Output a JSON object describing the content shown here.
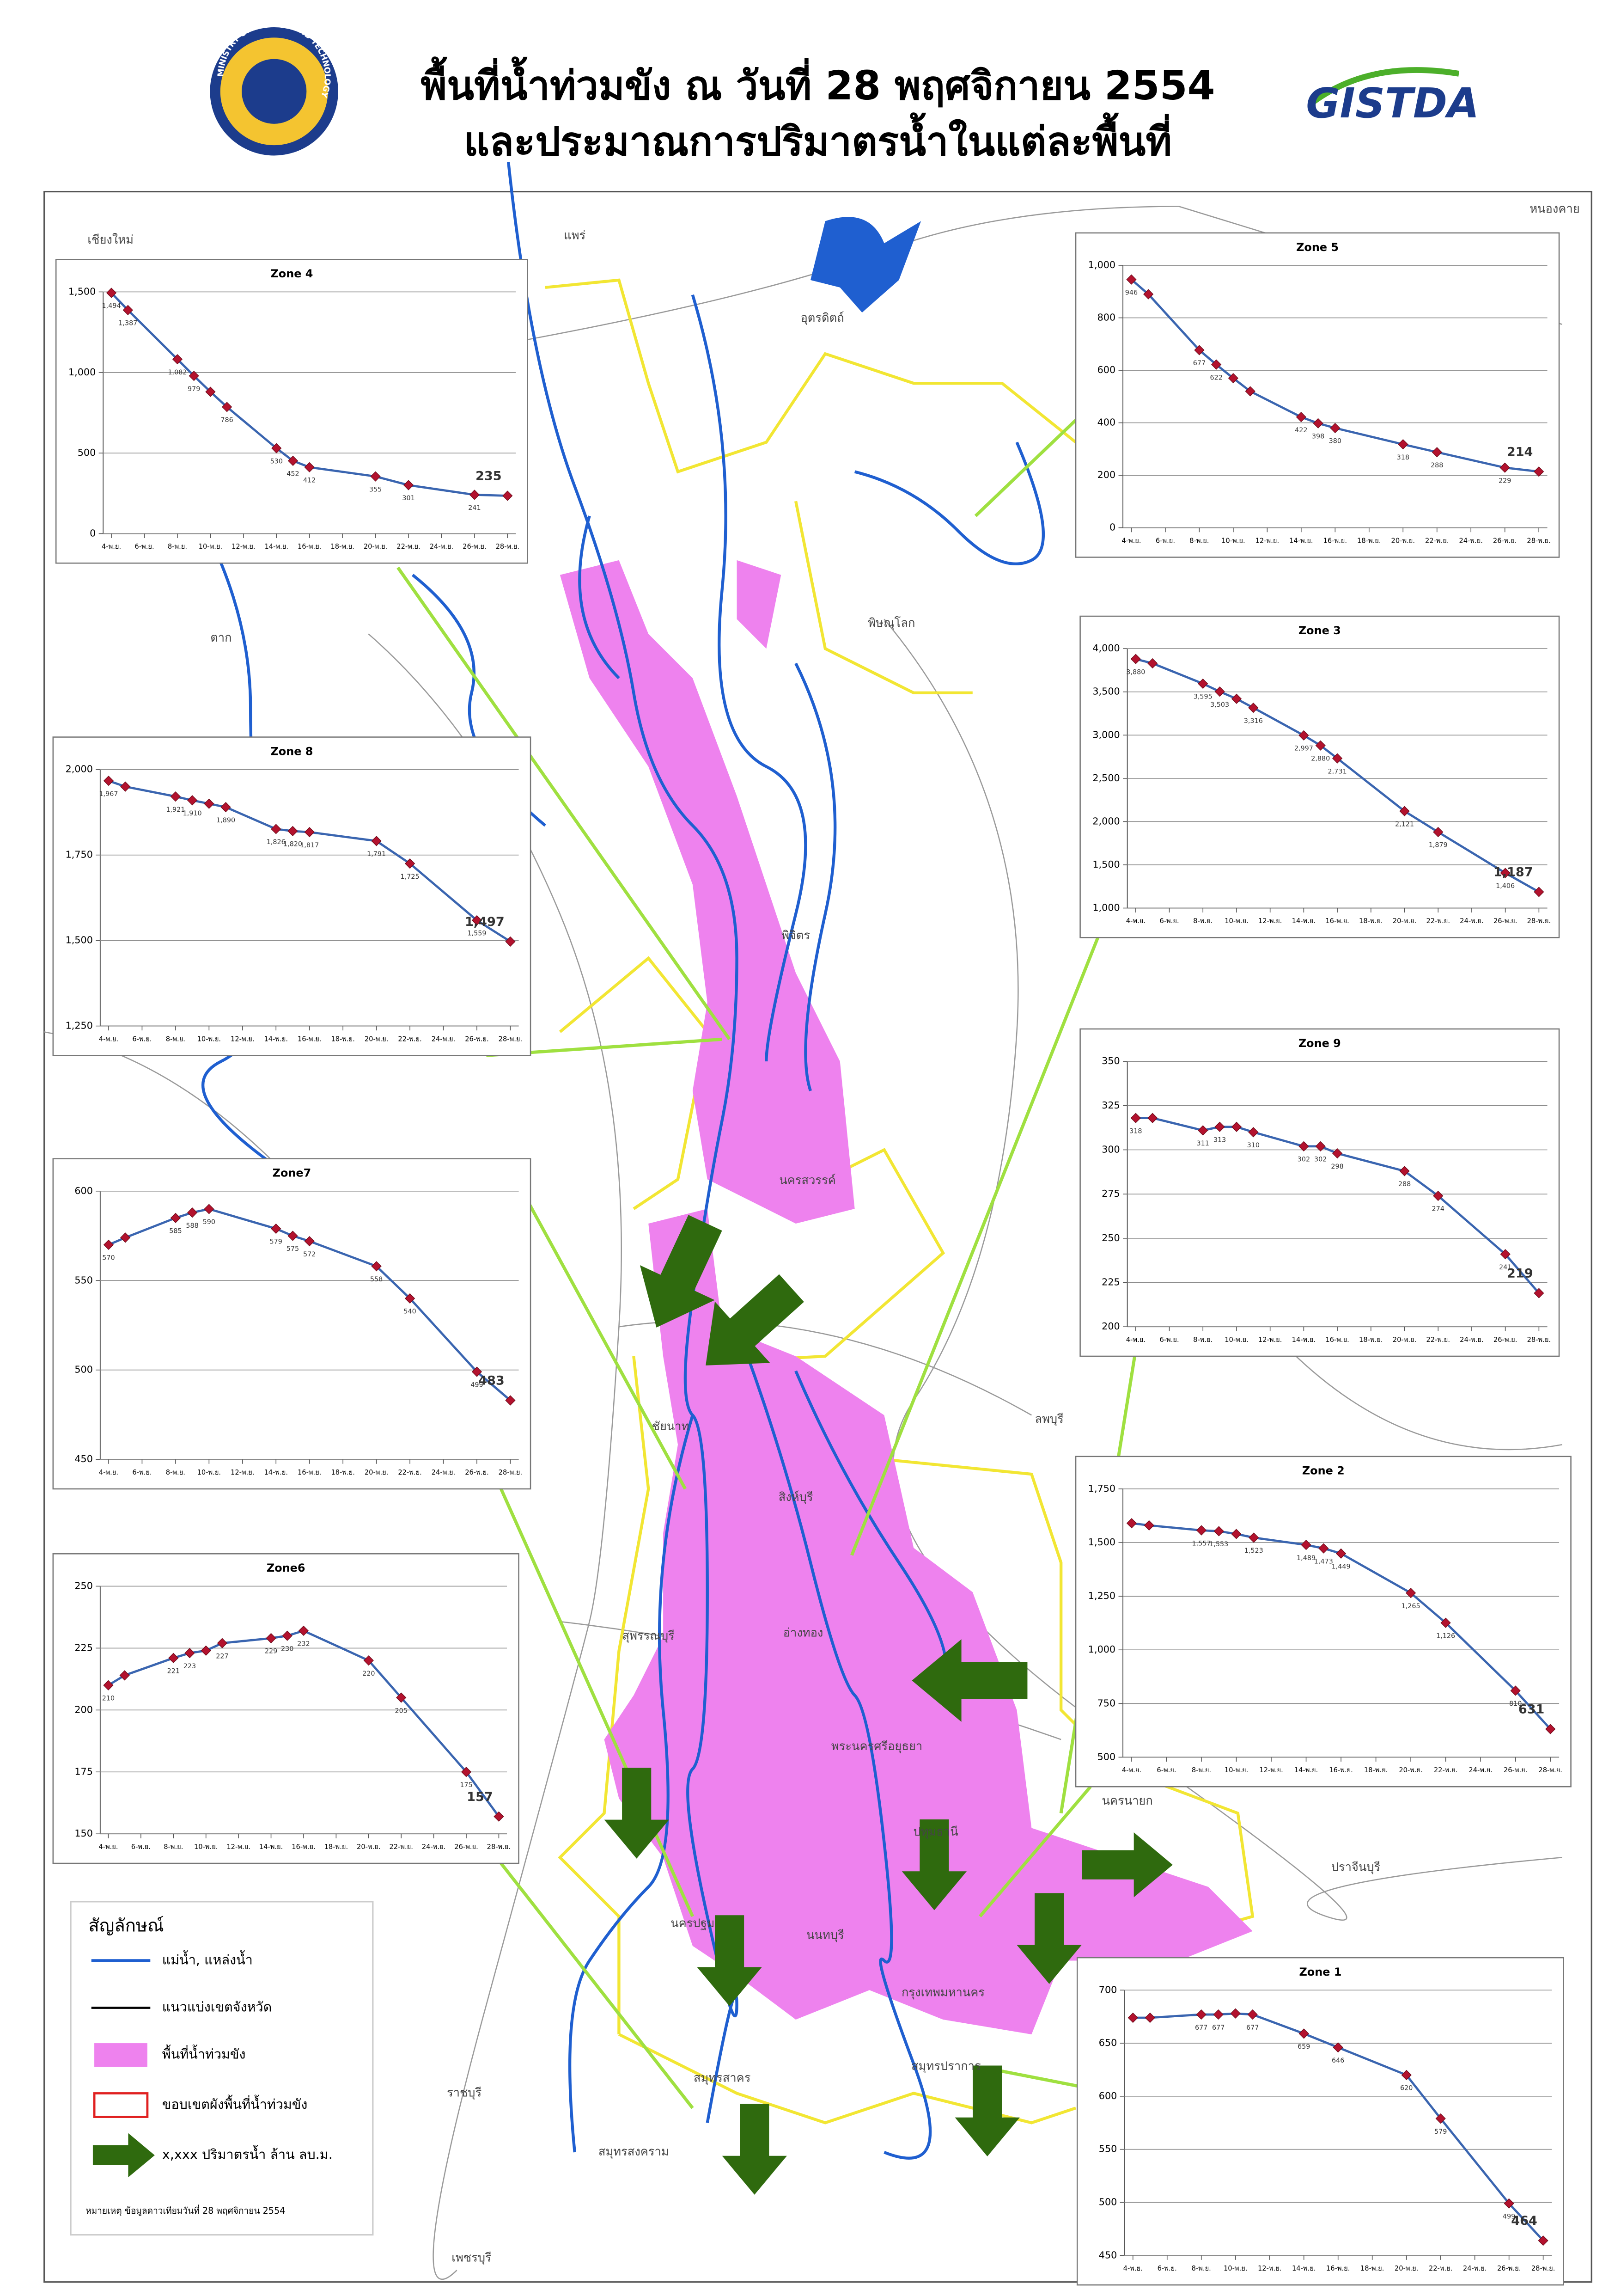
{
  "header": {
    "title": [
      "พื้นที่น้ำท่วมขัง ณ วันที่ 28 พฤศจิกายน 2554",
      "และประมาณการปริมาตรน้ำในแต่ละพื้นที่"
    ],
    "logo_left": "MINISTRY OF SCIENCE AND TECHNOLOGY",
    "logo_right": "GISTDA"
  },
  "legend": {
    "title": "สัญลักษณ์",
    "items": [
      "แม่น้ำ, แหล่งน้ำ",
      "แนวแบ่งเขตจังหวัด",
      "พื้นที่น้ำท่วมขัง",
      "ขอบเขตผังพื้นที่น้ำท่วมขัง",
      "x,xxx ปริมาตรน้ำ ล้าน ลบ.ม."
    ]
  },
  "note": "หมายเหตุ ข้อมูลดาวเทียมวันที่ 28 พฤศจิกายน 2554",
  "place_labels": [
    "เชียงใหม่",
    "แพร่",
    "หนองคาย",
    "อุตรดิตถ์",
    "พิษณุโลก",
    "ตาก",
    "พิจิตร",
    "นครสวรรค์",
    "ชัยนาท",
    "ลพบุรี",
    "สิงห์บุรี",
    "สุพรรณบุรี",
    "อ่างทอง",
    "พระนครศรีอยุธยา",
    "นครนายก",
    "ปทุมธานี",
    "ปราจีนบุรี",
    "นครปฐม",
    "นนทบุรี",
    "กรุงเทพมหานคร",
    "สมุทรสาคร",
    "สมุทรปราการ",
    "ราชบุรี",
    "สมุทรสงคราม",
    "เพชรบุรี"
  ],
  "chart_data": [
    {
      "type": "line",
      "title": "Zone 4",
      "x": [
        4,
        5,
        8,
        9,
        10,
        11,
        14,
        15,
        16,
        20,
        22,
        26,
        28
      ],
      "values": [
        1494,
        1387,
        1082,
        979,
        880,
        786,
        530,
        452,
        412,
        355,
        301,
        241,
        235
      ],
      "value_labels": [
        "1,494",
        "1,387",
        "1,082",
        "979",
        null,
        "786",
        "530",
        "452",
        "412",
        "355",
        "301",
        "241",
        "235"
      ],
      "xlim": [
        3.5,
        28.5
      ],
      "xticks": [
        {
          "value": 4,
          "label": "4-พ.ย."
        },
        {
          "value": 6,
          "label": "6-พ.ย."
        },
        {
          "value": 8,
          "label": "8-พ.ย."
        },
        {
          "value": 10,
          "label": "10-พ.ย."
        },
        {
          "value": 12,
          "label": "12-พ.ย."
        },
        {
          "value": 14,
          "label": "14-พ.ย."
        },
        {
          "value": 16,
          "label": "16-พ.ย."
        },
        {
          "value": 18,
          "label": "18-พ.ย."
        },
        {
          "value": 20,
          "label": "20-พ.ย."
        },
        {
          "value": 22,
          "label": "22-พ.ย."
        },
        {
          "value": 24,
          "label": "24-พ.ย."
        },
        {
          "value": 26,
          "label": "26-พ.ย."
        },
        {
          "value": 28,
          "label": "28-พ.ย."
        }
      ],
      "ylim": [
        0,
        1500
      ],
      "yticks": [
        0,
        500,
        {
          "value": 1000,
          "label": "1,000"
        },
        {
          "value": 1500,
          "label": "1,500"
        }
      ],
      "color": "#3a65b0",
      "marker_color": "#b3122e",
      "grid": true
    },
    {
      "type": "line",
      "title": "Zone 5",
      "x": [
        4,
        5,
        8,
        9,
        10,
        11,
        14,
        15,
        16,
        20,
        22,
        26,
        28
      ],
      "values": [
        946,
        890,
        677,
        622,
        570,
        520,
        422,
        398,
        380,
        318,
        288,
        229,
        214
      ],
      "value_labels": [
        "946",
        null,
        "677",
        "622",
        null,
        null,
        "422",
        "398",
        "380",
        "318",
        "288",
        "229",
        "214"
      ],
      "xlim": [
        3.5,
        28.5
      ],
      "xticks": [
        {
          "value": 4,
          "label": "4-พ.ย."
        },
        {
          "value": 6,
          "label": "6-พ.ย."
        },
        {
          "value": 8,
          "label": "8-พ.ย."
        },
        {
          "value": 10,
          "label": "10-พ.ย."
        },
        {
          "value": 12,
          "label": "12-พ.ย."
        },
        {
          "value": 14,
          "label": "14-พ.ย."
        },
        {
          "value": 16,
          "label": "16-พ.ย."
        },
        {
          "value": 18,
          "label": "18-พ.ย."
        },
        {
          "value": 20,
          "label": "20-พ.ย."
        },
        {
          "value": 22,
          "label": "22-พ.ย."
        },
        {
          "value": 24,
          "label": "24-พ.ย."
        },
        {
          "value": 26,
          "label": "26-พ.ย."
        },
        {
          "value": 28,
          "label": "28-พ.ย."
        }
      ],
      "ylim": [
        0,
        1000
      ],
      "yticks": [
        0,
        200,
        400,
        600,
        800,
        {
          "value": 1000,
          "label": "1,000"
        }
      ],
      "color": "#3a65b0",
      "marker_color": "#b3122e",
      "grid": true
    },
    {
      "type": "line",
      "title": "Zone 3",
      "x": [
        4,
        5,
        8,
        9,
        10,
        11,
        14,
        15,
        16,
        20,
        22,
        26,
        28
      ],
      "values": [
        3880,
        3830,
        3595,
        3503,
        3420,
        3316,
        2997,
        2880,
        2731,
        2121,
        1879,
        1406,
        1187
      ],
      "value_labels": [
        "3,880",
        null,
        "3,595",
        "3,503",
        null,
        "3,316",
        "2,997",
        "2,880",
        "2,731",
        "2,121",
        "1,879",
        "1,406",
        "1,187"
      ],
      "xlim": [
        3.5,
        28.5
      ],
      "xticks": [
        {
          "value": 4,
          "label": "4-พ.ย."
        },
        {
          "value": 6,
          "label": "6-พ.ย."
        },
        {
          "value": 8,
          "label": "8-พ.ย."
        },
        {
          "value": 10,
          "label": "10-พ.ย."
        },
        {
          "value": 12,
          "label": "12-พ.ย."
        },
        {
          "value": 14,
          "label": "14-พ.ย."
        },
        {
          "value": 16,
          "label": "16-พ.ย."
        },
        {
          "value": 18,
          "label": "18-พ.ย."
        },
        {
          "value": 20,
          "label": "20-พ.ย."
        },
        {
          "value": 22,
          "label": "22-พ.ย."
        },
        {
          "value": 24,
          "label": "24-พ.ย."
        },
        {
          "value": 26,
          "label": "26-พ.ย."
        },
        {
          "value": 28,
          "label": "28-พ.ย."
        }
      ],
      "ylim": [
        1000,
        4000
      ],
      "yticks": [
        {
          "value": 1000,
          "label": "1,000"
        },
        {
          "value": 1500,
          "label": "1,500"
        },
        {
          "value": 2000,
          "label": "2,000"
        },
        {
          "value": 2500,
          "label": "2,500"
        },
        {
          "value": 3000,
          "label": "3,000"
        },
        {
          "value": 3500,
          "label": "3,500"
        },
        {
          "value": 4000,
          "label": "4,000"
        }
      ],
      "color": "#3a65b0",
      "marker_color": "#b3122e",
      "grid": true
    },
    {
      "type": "line",
      "title": "Zone 8",
      "x": [
        4,
        5,
        8,
        9,
        10,
        11,
        14,
        15,
        16,
        20,
        22,
        26,
        28
      ],
      "values": [
        1967,
        1950,
        1921,
        1910,
        1900,
        1890,
        1826,
        1820,
        1817,
        1791,
        1725,
        1559,
        1497
      ],
      "value_labels": [
        "1,967",
        null,
        "1,921",
        "1,910",
        null,
        "1,890",
        "1,826",
        "1,820",
        "1,817",
        "1,791",
        "1,725",
        "1,559",
        "1,497"
      ],
      "xlim": [
        3.5,
        28.5
      ],
      "xticks": [
        {
          "value": 4,
          "label": "4-พ.ย."
        },
        {
          "value": 6,
          "label": "6-พ.ย."
        },
        {
          "value": 8,
          "label": "8-พ.ย."
        },
        {
          "value": 10,
          "label": "10-พ.ย."
        },
        {
          "value": 12,
          "label": "12-พ.ย."
        },
        {
          "value": 14,
          "label": "14-พ.ย."
        },
        {
          "value": 16,
          "label": "16-พ.ย."
        },
        {
          "value": 18,
          "label": "18-พ.ย."
        },
        {
          "value": 20,
          "label": "20-พ.ย."
        },
        {
          "value": 22,
          "label": "22-พ.ย."
        },
        {
          "value": 24,
          "label": "24-พ.ย."
        },
        {
          "value": 26,
          "label": "26-พ.ย."
        },
        {
          "value": 28,
          "label": "28-พ.ย."
        }
      ],
      "ylim": [
        1250,
        2000
      ],
      "yticks": [
        {
          "value": 1250,
          "label": "1,250"
        },
        {
          "value": 1500,
          "label": "1,500"
        },
        {
          "value": 1750,
          "label": "1,750"
        },
        {
          "value": 2000,
          "label": "2,000"
        }
      ],
      "color": "#3a65b0",
      "marker_color": "#b3122e",
      "grid": true
    },
    {
      "type": "line",
      "title": "Zone 9",
      "x": [
        4,
        5,
        8,
        9,
        10,
        11,
        14,
        15,
        16,
        20,
        22,
        26,
        28
      ],
      "values": [
        318,
        318,
        311,
        313,
        313,
        310,
        302,
        302,
        298,
        288,
        274,
        241,
        219
      ],
      "value_labels": [
        "318",
        null,
        "311",
        "313",
        null,
        "310",
        "302",
        "302",
        "298",
        "288",
        "274",
        "241",
        "219"
      ],
      "xlim": [
        3.5,
        28.5
      ],
      "xticks": [
        {
          "value": 4,
          "label": "4-พ.ย."
        },
        {
          "value": 6,
          "label": "6-พ.ย."
        },
        {
          "value": 8,
          "label": "8-พ.ย."
        },
        {
          "value": 10,
          "label": "10-พ.ย."
        },
        {
          "value": 12,
          "label": "12-พ.ย."
        },
        {
          "value": 14,
          "label": "14-พ.ย."
        },
        {
          "value": 16,
          "label": "16-พ.ย."
        },
        {
          "value": 18,
          "label": "18-พ.ย."
        },
        {
          "value": 20,
          "label": "20-พ.ย."
        },
        {
          "value": 22,
          "label": "22-พ.ย."
        },
        {
          "value": 24,
          "label": "24-พ.ย."
        },
        {
          "value": 26,
          "label": "26-พ.ย."
        },
        {
          "value": 28,
          "label": "28-พ.ย."
        }
      ],
      "ylim": [
        200,
        350
      ],
      "yticks": [
        200,
        225,
        250,
        275,
        300,
        325,
        350
      ],
      "color": "#3a65b0",
      "marker_color": "#b3122e",
      "grid": true
    },
    {
      "type": "line",
      "title": "Zone7",
      "x": [
        4,
        5,
        8,
        9,
        10,
        14,
        15,
        16,
        20,
        22,
        26,
        28
      ],
      "values": [
        570,
        574,
        585,
        588,
        590,
        579,
        575,
        572,
        558,
        540,
        499,
        483
      ],
      "value_labels": [
        "570",
        null,
        "585",
        "588",
        "590",
        "579",
        "575",
        "572",
        "558",
        "540",
        "499",
        "483"
      ],
      "xlim": [
        3.5,
        28.5
      ],
      "xticks": [
        {
          "value": 4,
          "label": "4-พ.ย."
        },
        {
          "value": 6,
          "label": "6-พ.ย."
        },
        {
          "value": 8,
          "label": "8-พ.ย."
        },
        {
          "value": 10,
          "label": "10-พ.ย."
        },
        {
          "value": 12,
          "label": "12-พ.ย."
        },
        {
          "value": 14,
          "label": "14-พ.ย."
        },
        {
          "value": 16,
          "label": "16-พ.ย."
        },
        {
          "value": 18,
          "label": "18-พ.ย."
        },
        {
          "value": 20,
          "label": "20-พ.ย."
        },
        {
          "value": 22,
          "label": "22-พ.ย."
        },
        {
          "value": 24,
          "label": "24-พ.ย."
        },
        {
          "value": 26,
          "label": "26-พ.ย."
        },
        {
          "value": 28,
          "label": "28-พ.ย."
        }
      ],
      "ylim": [
        450,
        600
      ],
      "yticks": [
        450,
        500,
        550,
        600
      ],
      "color": "#3a65b0",
      "marker_color": "#b3122e",
      "grid": true
    },
    {
      "type": "line",
      "title": "Zone 2",
      "x": [
        4,
        5,
        8,
        9,
        10,
        11,
        14,
        15,
        16,
        20,
        22,
        26,
        28
      ],
      "values": [
        1590,
        1580,
        1557,
        1553,
        1540,
        1523,
        1489,
        1473,
        1449,
        1265,
        1126,
        810,
        631
      ],
      "value_labels": [
        null,
        null,
        "1,557",
        "1,553",
        null,
        "1,523",
        "1,489",
        "1,473",
        "1,449",
        "1,265",
        "1,126",
        "810",
        "631"
      ],
      "xlim": [
        3.5,
        28.5
      ],
      "xticks": [
        {
          "value": 4,
          "label": "4-พ.ย."
        },
        {
          "value": 6,
          "label": "6-พ.ย."
        },
        {
          "value": 8,
          "label": "8-พ.ย."
        },
        {
          "value": 10,
          "label": "10-พ.ย."
        },
        {
          "value": 12,
          "label": "12-พ.ย."
        },
        {
          "value": 14,
          "label": "14-พ.ย."
        },
        {
          "value": 16,
          "label": "16-พ.ย."
        },
        {
          "value": 18,
          "label": "18-พ.ย."
        },
        {
          "value": 20,
          "label": "20-พ.ย."
        },
        {
          "value": 22,
          "label": "22-พ.ย."
        },
        {
          "value": 24,
          "label": "24-พ.ย."
        },
        {
          "value": 26,
          "label": "26-พ.ย."
        },
        {
          "value": 28,
          "label": "28-พ.ย."
        }
      ],
      "ylim": [
        500,
        1750
      ],
      "yticks": [
        500,
        750,
        {
          "value": 1000,
          "label": "1,000"
        },
        {
          "value": 1250,
          "label": "1,250"
        },
        {
          "value": 1500,
          "label": "1,500"
        },
        {
          "value": 1750,
          "label": "1,750"
        }
      ],
      "color": "#3a65b0",
      "marker_color": "#b3122e",
      "grid": true
    },
    {
      "type": "line",
      "title": "Zone6",
      "x": [
        4,
        5,
        8,
        9,
        10,
        11,
        14,
        15,
        16,
        20,
        22,
        26,
        28
      ],
      "values": [
        210,
        214,
        221,
        223,
        224,
        227,
        229,
        230,
        232,
        220,
        205,
        175,
        157
      ],
      "value_labels": [
        "210",
        null,
        "221",
        "223",
        null,
        "227",
        "229",
        "230",
        "232",
        "220",
        "205",
        "175",
        "157"
      ],
      "xlim": [
        3.5,
        28.5
      ],
      "xticks": [
        {
          "value": 4,
          "label": "4-พ.ย."
        },
        {
          "value": 6,
          "label": "6-พ.ย."
        },
        {
          "value": 8,
          "label": "8-พ.ย."
        },
        {
          "value": 10,
          "label": "10-พ.ย."
        },
        {
          "value": 12,
          "label": "12-พ.ย."
        },
        {
          "value": 14,
          "label": "14-พ.ย."
        },
        {
          "value": 16,
          "label": "16-พ.ย."
        },
        {
          "value": 18,
          "label": "18-พ.ย."
        },
        {
          "value": 20,
          "label": "20-พ.ย."
        },
        {
          "value": 22,
          "label": "22-พ.ย."
        },
        {
          "value": 24,
          "label": "24-พ.ย."
        },
        {
          "value": 26,
          "label": "26-พ.ย."
        },
        {
          "value": 28,
          "label": "28-พ.ย."
        }
      ],
      "ylim": [
        150,
        250
      ],
      "yticks": [
        150,
        175,
        200,
        225,
        250
      ],
      "color": "#3a65b0",
      "marker_color": "#b3122e",
      "grid": true
    },
    {
      "type": "line",
      "title": "Zone 1",
      "x": [
        4,
        5,
        8,
        9,
        10,
        11,
        14,
        16,
        20,
        22,
        26,
        28
      ],
      "values": [
        674,
        674,
        677,
        677,
        678,
        677,
        659,
        646,
        620,
        579,
        499,
        464
      ],
      "value_labels": [
        null,
        null,
        "677",
        "677",
        null,
        "677",
        "659",
        "646",
        "620",
        "579",
        "499",
        "464"
      ],
      "xlim": [
        3.5,
        28.5
      ],
      "xticks": [
        {
          "value": 4,
          "label": "4-พ.ย."
        },
        {
          "value": 6,
          "label": "6-พ.ย."
        },
        {
          "value": 8,
          "label": "8-พ.ย."
        },
        {
          "value": 10,
          "label": "10-พ.ย."
        },
        {
          "value": 12,
          "label": "12-พ.ย."
        },
        {
          "value": 14,
          "label": "14-พ.ย."
        },
        {
          "value": 16,
          "label": "16-พ.ย."
        },
        {
          "value": 18,
          "label": "18-พ.ย."
        },
        {
          "value": 20,
          "label": "20-พ.ย."
        },
        {
          "value": 22,
          "label": "22-พ.ย."
        },
        {
          "value": 24,
          "label": "24-พ.ย."
        },
        {
          "value": 26,
          "label": "26-พ.ย."
        },
        {
          "value": 28,
          "label": "28-พ.ย."
        }
      ],
      "ylim": [
        450,
        700
      ],
      "yticks": [
        450,
        500,
        550,
        600,
        650,
        700
      ],
      "color": "#3a65b0",
      "marker_color": "#b3122e",
      "grid": true
    }
  ]
}
